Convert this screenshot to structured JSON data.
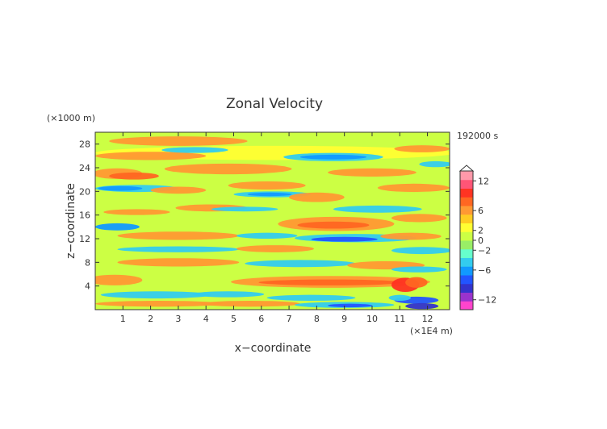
{
  "chart_data": {
    "type": "heatmap",
    "title": "Zonal Velocity",
    "xlabel": "x−coordinate",
    "ylabel": "z−coordinate",
    "x_unit": "(×1E4 m)",
    "y_unit": "(×1000 m)",
    "time_label": "192000 s",
    "xlim": [
      0,
      12.8
    ],
    "ylim": [
      0,
      30
    ],
    "x_ticks": [
      "1",
      "2",
      "3",
      "4",
      "5",
      "6",
      "7",
      "8",
      "9",
      "10",
      "11",
      "12"
    ],
    "y_ticks": [
      "4",
      "8",
      "12",
      "16",
      "20",
      "24",
      "28"
    ],
    "colorbar": {
      "min": -14,
      "max": 14,
      "tick_labels": [
        "12",
        "6",
        "2",
        "0",
        "−2",
        "−6",
        "−12"
      ],
      "tick_values": [
        12,
        6,
        2,
        0,
        -2,
        -6,
        -12
      ],
      "colors": [
        "#ff44cc",
        "#9933cc",
        "#3333cc",
        "#2255ff",
        "#1199ff",
        "#33ccee",
        "#66ffcc",
        "#99ee66",
        "#ccff44",
        "#ffff33",
        "#ffcc22",
        "#ff9933",
        "#ff6622",
        "#ff3322",
        "#ff5577",
        "#ff99aa"
      ]
    }
  }
}
